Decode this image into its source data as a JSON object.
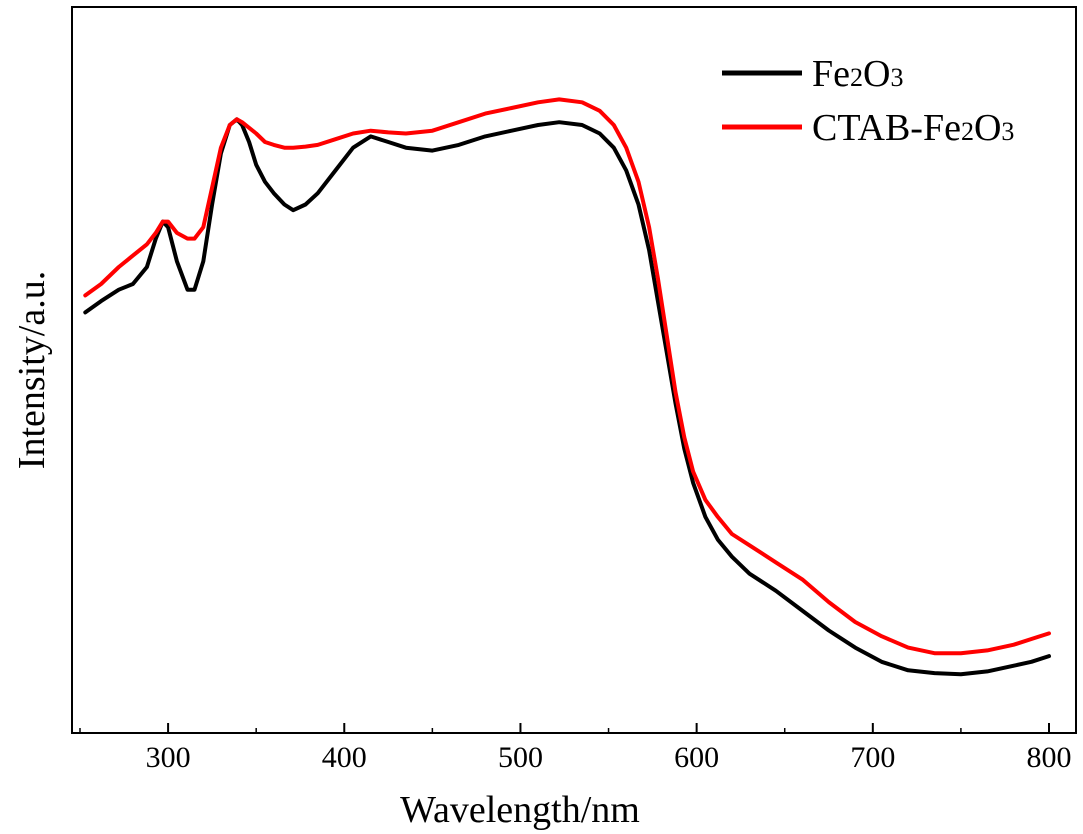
{
  "chart_data": {
    "type": "line",
    "xlabel": "Wavelength/nm",
    "ylabel": "Intensity/a.u.",
    "xlim": [
      250,
      800
    ],
    "ylim": [
      0,
      1
    ],
    "x_ticks": [
      300,
      400,
      500,
      600,
      700,
      800
    ],
    "y_ticks_shown": false,
    "grid": false,
    "legend_position": "top-right",
    "legend": [
      {
        "base": "Fe",
        "sub1": "2",
        "mid": "O",
        "sub2": "3",
        "prefix": ""
      },
      {
        "base": "Fe",
        "sub1": "2",
        "mid": "O",
        "sub2": "3",
        "prefix": "CTAB-"
      }
    ],
    "series": [
      {
        "name": "Fe2O3",
        "color": "#000000",
        "x": [
          253,
          262,
          272,
          280,
          288,
          293,
          297,
          300,
          305,
          311,
          315,
          320,
          325,
          330,
          335,
          339,
          342,
          346,
          350,
          355,
          360,
          366,
          371,
          378,
          385,
          395,
          405,
          415,
          425,
          435,
          450,
          465,
          480,
          495,
          510,
          522,
          535,
          545,
          553,
          560,
          567,
          573,
          578,
          583,
          588,
          593,
          598,
          605,
          612,
          620,
          630,
          645,
          660,
          675,
          690,
          705,
          720,
          735,
          750,
          765,
          780,
          790,
          800
        ],
        "y": [
          0.67,
          0.69,
          0.71,
          0.72,
          0.75,
          0.8,
          0.83,
          0.82,
          0.76,
          0.71,
          0.71,
          0.76,
          0.86,
          0.95,
          1.0,
          1.01,
          1.0,
          0.97,
          0.93,
          0.9,
          0.88,
          0.86,
          0.85,
          0.86,
          0.88,
          0.92,
          0.96,
          0.98,
          0.97,
          0.96,
          0.955,
          0.965,
          0.98,
          0.99,
          1.0,
          1.005,
          1.0,
          0.985,
          0.96,
          0.92,
          0.86,
          0.78,
          0.69,
          0.6,
          0.51,
          0.43,
          0.37,
          0.31,
          0.27,
          0.24,
          0.21,
          0.18,
          0.145,
          0.11,
          0.08,
          0.055,
          0.04,
          0.035,
          0.033,
          0.038,
          0.048,
          0.055,
          0.065
        ]
      },
      {
        "name": "CTAB-Fe2O3",
        "color": "#ff0000",
        "x": [
          253,
          262,
          272,
          280,
          288,
          293,
          297,
          300,
          305,
          311,
          315,
          320,
          325,
          330,
          335,
          339,
          342,
          346,
          350,
          355,
          360,
          366,
          371,
          378,
          385,
          395,
          405,
          415,
          425,
          435,
          450,
          465,
          480,
          495,
          510,
          522,
          535,
          545,
          553,
          560,
          567,
          573,
          578,
          583,
          588,
          593,
          598,
          605,
          612,
          620,
          630,
          645,
          660,
          675,
          690,
          705,
          720,
          735,
          750,
          765,
          780,
          790,
          800
        ],
        "y": [
          0.7,
          0.72,
          0.75,
          0.77,
          0.79,
          0.81,
          0.83,
          0.83,
          0.81,
          0.8,
          0.8,
          0.82,
          0.89,
          0.96,
          1.0,
          1.01,
          1.005,
          0.995,
          0.985,
          0.97,
          0.965,
          0.96,
          0.96,
          0.962,
          0.965,
          0.975,
          0.985,
          0.99,
          0.987,
          0.985,
          0.99,
          1.005,
          1.02,
          1.03,
          1.04,
          1.045,
          1.04,
          1.025,
          1.0,
          0.96,
          0.9,
          0.82,
          0.73,
          0.63,
          0.53,
          0.45,
          0.39,
          0.34,
          0.31,
          0.28,
          0.26,
          0.23,
          0.2,
          0.16,
          0.125,
          0.1,
          0.08,
          0.07,
          0.07,
          0.075,
          0.085,
          0.095,
          0.105
        ]
      }
    ]
  }
}
